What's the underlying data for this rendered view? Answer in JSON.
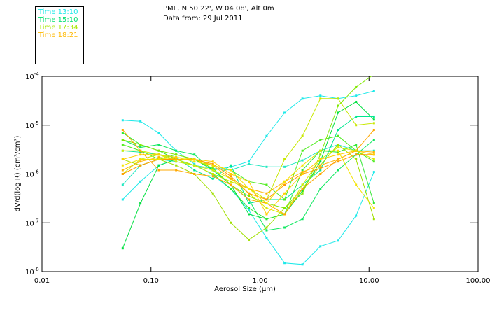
{
  "legend": [
    {
      "label": "Time 13:10",
      "color": "#1de9e9"
    },
    {
      "label": "Time 15:10",
      "color": "#00e070"
    },
    {
      "label": "Time 17:34",
      "color": "#a8e800"
    },
    {
      "label": "Time 18:21",
      "color": "#ffb800"
    }
  ],
  "header": {
    "line1": "PML, N 50 22', W 04 08', Alt 0m",
    "line2": "Data from: 29 Jul 2011"
  },
  "chart_data": {
    "type": "line",
    "title": "PML, N 50 22', W 04 08', Alt 0m",
    "xlabel": "Aerosol Size (µm)",
    "ylabel": "dV/d(log R) (cm³/cm³)",
    "xscale": "log",
    "yscale": "log",
    "xlim": [
      0.01,
      100
    ],
    "ylim": [
      1e-08,
      0.0001
    ],
    "xticks": [
      "0.01",
      "0.10",
      "1.00",
      "10.00",
      "100.00"
    ],
    "yticks": [
      {
        "base": "10",
        "exp": "-4"
      },
      {
        "base": "10",
        "exp": "-5"
      },
      {
        "base": "10",
        "exp": "-6"
      },
      {
        "base": "10",
        "exp": "-7"
      },
      {
        "base": "10",
        "exp": "-8"
      }
    ],
    "grid": false,
    "x": [
      0.055,
      0.08,
      0.118,
      0.17,
      0.25,
      0.37,
      0.54,
      0.79,
      1.15,
      1.68,
      2.45,
      3.58,
      5.2,
      7.6,
      11.1
    ],
    "series": [
      {
        "name": "Time 13:10",
        "color": "#1de9e9",
        "values": [
          1.26e-05,
          1.2e-05,
          6.9e-06,
          3e-06,
          1.6e-06,
          9.5e-07,
          4.9e-07,
          1.8e-07,
          4.9e-08,
          1.5e-08,
          1.4e-08,
          3.3e-08,
          4.3e-08,
          1.4e-07,
          1.1e-06
        ]
      },
      {
        "name": "Time 13:10",
        "color": "#1de9e9",
        "values": [
          3e-07,
          7e-07,
          1.5e-06,
          2e-06,
          1.5e-06,
          1.2e-06,
          1.4e-06,
          1.8e-06,
          6e-06,
          1.8e-05,
          3.5e-05,
          4e-05,
          3.5e-05,
          4e-05,
          5e-05
        ]
      },
      {
        "name": "Time 13:10",
        "color": "#20e8c0",
        "values": [
          6e-07,
          1.5e-06,
          2e-06,
          1.8e-06,
          1.5e-06,
          1.3e-06,
          1.2e-06,
          1.6e-06,
          1.4e-06,
          1.4e-06,
          1.9e-06,
          3e-06,
          4e-06,
          3e-06,
          3e-06
        ]
      },
      {
        "name": "Time 15:10",
        "color": "#00e040",
        "values": [
          3e-08,
          2.5e-07,
          1.5e-06,
          2e-06,
          2e-06,
          1.2e-06,
          6e-07,
          1.5e-07,
          1.2e-07,
          1.5e-07,
          4.5e-07,
          1.8e-06,
          1.8e-05,
          3e-05,
          1.3e-05
        ]
      },
      {
        "name": "Time 15:10",
        "color": "#10e860",
        "values": [
          5e-06,
          3.5e-06,
          4e-06,
          3e-06,
          2.5e-06,
          1.2e-06,
          6e-07,
          3e-07,
          7e-08,
          8e-08,
          1.2e-07,
          5e-07,
          1.2e-06,
          2.5e-06,
          5e-06
        ]
      },
      {
        "name": "Time 15:10",
        "color": "#30e830",
        "values": [
          7e-06,
          4e-06,
          3e-06,
          2e-06,
          1.5e-06,
          1e-06,
          5e-07,
          2e-07,
          1.2e-07,
          1.5e-07,
          1.2e-06,
          3e-06,
          2.8e-06,
          4e-06,
          2.5e-07
        ]
      },
      {
        "name": "Time 15:10",
        "color": "#00e890",
        "values": [
          3e-06,
          2.8e-06,
          2.5e-06,
          2.2e-06,
          1.2e-06,
          8e-07,
          1.5e-06,
          2.5e-07,
          3e-07,
          3e-07,
          6e-07,
          1.2e-06,
          8e-06,
          1.5e-05,
          1.5e-05
        ]
      },
      {
        "name": "Time 15:10",
        "color": "#50ec20",
        "values": [
          4e-06,
          3e-06,
          2e-06,
          2.5e-06,
          2e-06,
          1.5e-06,
          1.2e-06,
          7e-07,
          6e-07,
          3e-07,
          3e-06,
          5e-06,
          6e-06,
          3e-06,
          1.8e-06
        ]
      },
      {
        "name": "Time 17:34",
        "color": "#a0e000",
        "values": [
          2e-06,
          1.5e-06,
          2e-06,
          1.5e-06,
          1e-06,
          4e-07,
          1e-07,
          4.5e-08,
          8e-08,
          2e-07,
          5e-07,
          1.5e-06,
          4e-06,
          2e-06,
          1.2e-07
        ]
      },
      {
        "name": "Time 17:34",
        "color": "#c8e800",
        "values": [
          1e-06,
          2e-06,
          2.5e-06,
          2e-06,
          1.5e-06,
          1e-06,
          7e-07,
          5e-07,
          3e-07,
          2e-06,
          6e-06,
          3.5e-05,
          3.5e-05,
          1e-05,
          1.1e-05
        ]
      },
      {
        "name": "Time 17:34",
        "color": "#80e800",
        "values": [
          5e-06,
          4e-06,
          3e-06,
          2.5e-06,
          2e-06,
          1.3e-06,
          6e-07,
          3.5e-07,
          2.5e-07,
          2e-07,
          4e-07,
          2.5e-06,
          2.5e-05,
          6e-05,
          0.00011
        ]
      },
      {
        "name": "Time 17:34",
        "color": "#d8ec00",
        "values": [
          3e-06,
          3e-06,
          2.5e-06,
          1.8e-06,
          1.5e-06,
          1.2e-06,
          8e-07,
          4e-07,
          2e-07,
          1.5e-07,
          6e-07,
          2e-06,
          3.5e-06,
          3e-06,
          2e-06
        ]
      },
      {
        "name": "Time 18:21",
        "color": "#ffa800",
        "values": [
          8e-06,
          3e-06,
          1.2e-06,
          1.2e-06,
          1e-06,
          9e-07,
          6e-07,
          3e-07,
          2.5e-07,
          1.5e-07,
          5e-07,
          1e-06,
          2e-06,
          3e-06,
          8e-06
        ]
      },
      {
        "name": "Time 18:21",
        "color": "#ff9c00",
        "values": [
          1e-06,
          1.5e-06,
          2e-06,
          2e-06,
          2e-06,
          1.6e-06,
          9e-07,
          4e-07,
          3e-07,
          6e-07,
          1e-06,
          1.3e-06,
          1.8e-06,
          2.5e-06,
          2.5e-06
        ]
      },
      {
        "name": "Time 18:21",
        "color": "#ffb400",
        "values": [
          1.2e-06,
          1.8e-06,
          2.2e-06,
          2e-06,
          2e-06,
          1.5e-06,
          8e-07,
          5e-07,
          4e-07,
          7e-07,
          1.1e-06,
          1.5e-06,
          2e-06,
          3e-06,
          2.8e-06
        ]
      },
      {
        "name": "Time 18:21",
        "color": "#f4e400",
        "values": [
          1.5e-06,
          2e-06,
          2e-06,
          2.2e-06,
          1.8e-06,
          1.5e-06,
          1.2e-06,
          5e-07,
          2.5e-07,
          7e-07,
          1.5e-06,
          3e-06,
          3e-06,
          6e-07,
          2e-07
        ]
      },
      {
        "name": "Time 18:21",
        "color": "#ffd000",
        "values": [
          2e-06,
          2.5e-06,
          2.5e-06,
          2.2e-06,
          2e-06,
          1.8e-06,
          1e-06,
          7e-07,
          1.5e-07,
          4e-07,
          1e-06,
          2e-06,
          2.5e-06,
          3e-06,
          2.5e-06
        ]
      }
    ]
  }
}
